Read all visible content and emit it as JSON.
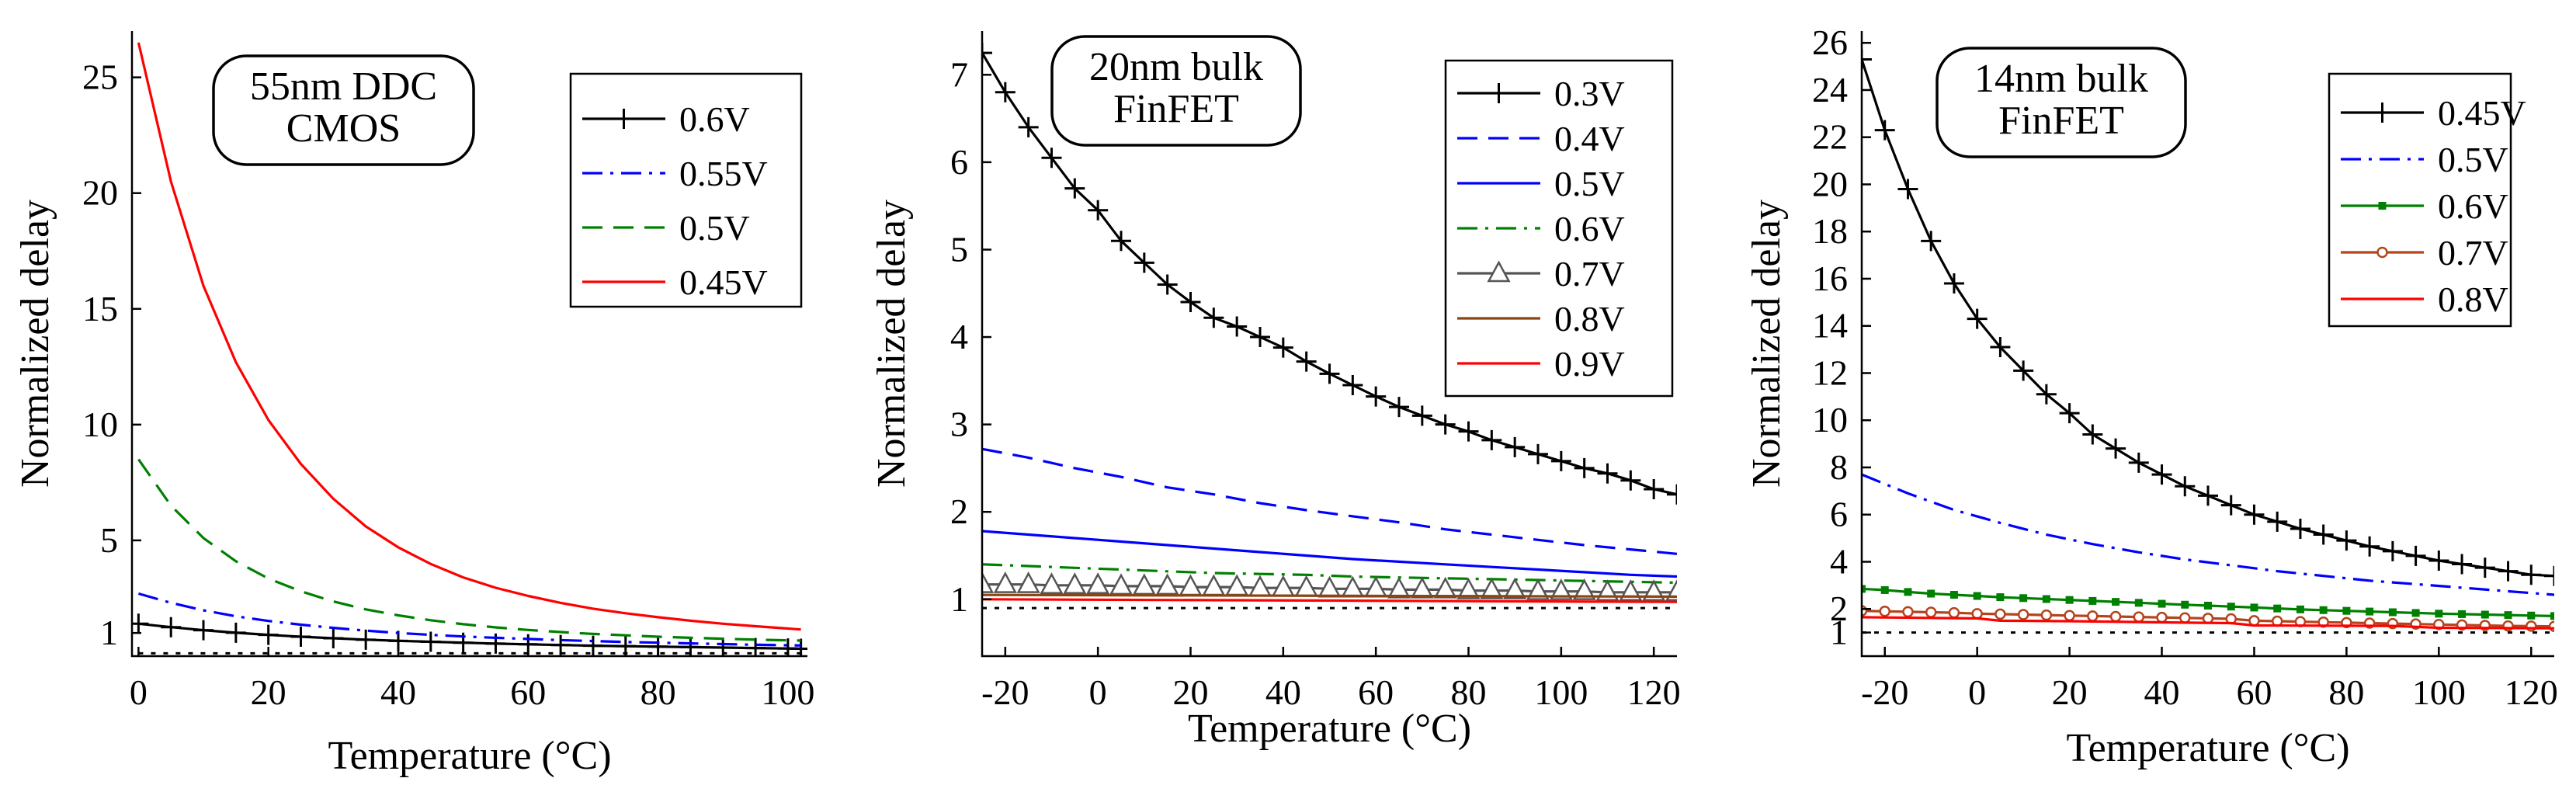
{
  "chart_data": [
    {
      "type": "line",
      "annotation": [
        "55nm DDC",
        "CMOS"
      ],
      "xlabel": "Temperature (°C)",
      "ylabel": "Normalized delay",
      "xlim": [
        -1,
        103
      ],
      "ylim": [
        0,
        27
      ],
      "xticks": [
        0,
        20,
        40,
        60,
        80,
        100
      ],
      "xtick_labels": [
        "0",
        "20",
        "40",
        "60",
        "80",
        "100"
      ],
      "yticks": [
        1,
        5,
        10,
        15,
        20,
        25
      ],
      "ytick_labels": [
        "1",
        "5",
        "10",
        "15",
        "20",
        "25"
      ],
      "legend_position": "top-right",
      "series": [
        {
          "name": "0.6V",
          "color": "#000000",
          "dash": "solid",
          "marker": "plus",
          "x": [
            0,
            5,
            10,
            15,
            20,
            25,
            30,
            35,
            40,
            45,
            50,
            55,
            60,
            65,
            70,
            75,
            80,
            85,
            90,
            95,
            100,
            102
          ],
          "values": [
            1.4,
            1.25,
            1.12,
            1.01,
            0.92,
            0.84,
            0.77,
            0.71,
            0.66,
            0.62,
            0.58,
            0.54,
            0.51,
            0.48,
            0.45,
            0.43,
            0.41,
            0.39,
            0.37,
            0.35,
            0.33,
            0.32
          ]
        },
        {
          "name": "0.55V",
          "color": "#0000ff",
          "dash": "dashdot",
          "marker": "none",
          "x": [
            0,
            5,
            10,
            15,
            20,
            25,
            30,
            35,
            40,
            45,
            50,
            55,
            60,
            65,
            70,
            75,
            80,
            85,
            90,
            95,
            100,
            102
          ],
          "values": [
            2.7,
            2.3,
            1.98,
            1.72,
            1.52,
            1.36,
            1.22,
            1.1,
            1.0,
            0.92,
            0.85,
            0.79,
            0.74,
            0.69,
            0.65,
            0.61,
            0.58,
            0.55,
            0.52,
            0.49,
            0.47,
            0.46
          ]
        },
        {
          "name": "0.5V",
          "color": "#008000",
          "dash": "dash",
          "marker": "none",
          "x": [
            0,
            5,
            10,
            15,
            20,
            25,
            30,
            35,
            40,
            45,
            50,
            55,
            60,
            65,
            70,
            75,
            80,
            85,
            90,
            95,
            100,
            102
          ],
          "values": [
            8.5,
            6.5,
            5.1,
            4.1,
            3.35,
            2.8,
            2.36,
            2.02,
            1.76,
            1.55,
            1.38,
            1.24,
            1.13,
            1.04,
            0.96,
            0.9,
            0.84,
            0.79,
            0.75,
            0.71,
            0.68,
            0.67
          ]
        },
        {
          "name": "0.45V",
          "color": "#ff0000",
          "dash": "solid",
          "marker": "none",
          "x": [
            0,
            5,
            10,
            15,
            20,
            25,
            30,
            35,
            40,
            45,
            50,
            55,
            60,
            65,
            70,
            75,
            80,
            85,
            90,
            95,
            100,
            102
          ],
          "values": [
            26.5,
            20.5,
            16.0,
            12.7,
            10.2,
            8.3,
            6.8,
            5.6,
            4.7,
            3.98,
            3.4,
            2.95,
            2.6,
            2.3,
            2.05,
            1.85,
            1.68,
            1.53,
            1.4,
            1.29,
            1.19,
            1.15
          ]
        },
        {
          "name": "",
          "color": "#000000",
          "dash": "dot",
          "marker": "none",
          "x": [
            0,
            102
          ],
          "values": [
            0.12,
            0.12
          ]
        }
      ]
    },
    {
      "type": "line",
      "annotation": [
        "20nm bulk",
        "FinFET"
      ],
      "xlabel": "Temperature (°C)",
      "ylabel": "Normalized delay",
      "xlim": [
        -25,
        125
      ],
      "ylim": [
        0.35,
        7.5
      ],
      "xticks": [
        -20,
        0,
        20,
        40,
        60,
        80,
        100,
        120
      ],
      "xtick_labels": [
        "-20",
        "0",
        "20",
        "40",
        "60",
        "80",
        "100",
        "120"
      ],
      "yticks": [
        1,
        2,
        3,
        4,
        5,
        6,
        7
      ],
      "ytick_labels": [
        "1",
        "2",
        "3",
        "4",
        "5",
        "6",
        "7"
      ],
      "legend_position": "top-right",
      "series": [
        {
          "name": "0.3V",
          "color": "#000000",
          "dash": "solid",
          "marker": "plus",
          "x": [
            -25,
            -20,
            -15,
            -10,
            -5,
            0,
            5,
            10,
            15,
            20,
            25,
            30,
            35,
            40,
            45,
            50,
            55,
            60,
            65,
            70,
            75,
            80,
            85,
            90,
            95,
            100,
            105,
            110,
            115,
            120,
            125
          ],
          "values": [
            7.25,
            6.8,
            6.4,
            6.05,
            5.7,
            5.45,
            5.1,
            4.85,
            4.6,
            4.4,
            4.22,
            4.12,
            4.0,
            3.88,
            3.72,
            3.58,
            3.45,
            3.32,
            3.2,
            3.1,
            3.0,
            2.92,
            2.82,
            2.74,
            2.66,
            2.58,
            2.5,
            2.44,
            2.36,
            2.26,
            2.2
          ]
        },
        {
          "name": "0.4V",
          "color": "#0000ff",
          "dash": "dash",
          "marker": "none",
          "x": [
            -25,
            -15,
            -5,
            5,
            15,
            25,
            35,
            45,
            55,
            65,
            75,
            85,
            95,
            105,
            115,
            125
          ],
          "values": [
            2.72,
            2.62,
            2.5,
            2.4,
            2.28,
            2.2,
            2.1,
            2.02,
            1.95,
            1.88,
            1.8,
            1.74,
            1.68,
            1.62,
            1.57,
            1.52
          ]
        },
        {
          "name": "0.5V",
          "color": "#0000ff",
          "dash": "solid",
          "marker": "none",
          "x": [
            -25,
            -15,
            -5,
            5,
            15,
            25,
            35,
            45,
            55,
            65,
            75,
            85,
            95,
            105,
            115,
            125
          ],
          "values": [
            1.78,
            1.74,
            1.7,
            1.66,
            1.62,
            1.58,
            1.54,
            1.5,
            1.46,
            1.43,
            1.4,
            1.37,
            1.34,
            1.31,
            1.28,
            1.26
          ]
        },
        {
          "name": "0.6V",
          "color": "#008000",
          "dash": "dashdot",
          "marker": "none",
          "x": [
            -25,
            -15,
            -5,
            5,
            15,
            25,
            35,
            45,
            55,
            65,
            75,
            85,
            95,
            105,
            115,
            125
          ],
          "values": [
            1.4,
            1.38,
            1.36,
            1.34,
            1.32,
            1.3,
            1.29,
            1.28,
            1.26,
            1.25,
            1.24,
            1.23,
            1.22,
            1.21,
            1.2,
            1.19
          ]
        },
        {
          "name": "0.7V",
          "color": "#555555",
          "dash": "solid",
          "marker": "triangle",
          "x": [
            -25,
            -20,
            -15,
            -10,
            -5,
            0,
            5,
            10,
            15,
            20,
            25,
            30,
            35,
            40,
            45,
            50,
            55,
            60,
            65,
            70,
            75,
            80,
            85,
            90,
            95,
            100,
            105,
            110,
            115,
            120,
            125
          ],
          "values": [
            1.17,
            1.17,
            1.17,
            1.16,
            1.16,
            1.16,
            1.15,
            1.15,
            1.15,
            1.14,
            1.14,
            1.14,
            1.13,
            1.13,
            1.13,
            1.12,
            1.12,
            1.12,
            1.11,
            1.11,
            1.11,
            1.1,
            1.1,
            1.1,
            1.09,
            1.09,
            1.09,
            1.08,
            1.08,
            1.08,
            1.08
          ]
        },
        {
          "name": "0.8V",
          "color": "#8b4513",
          "dash": "solid",
          "marker": "none",
          "x": [
            -25,
            125
          ],
          "values": [
            1.05,
            1.03
          ]
        },
        {
          "name": "0.9V",
          "color": "#ff0000",
          "dash": "solid",
          "marker": "none",
          "x": [
            -25,
            125
          ],
          "values": [
            1.0,
            0.97
          ]
        },
        {
          "name": "",
          "color": "#000000",
          "dash": "dot",
          "marker": "none",
          "x": [
            -25,
            125
          ],
          "values": [
            0.9,
            0.9
          ]
        }
      ]
    },
    {
      "type": "line",
      "annotation": [
        "14nm bulk",
        "FinFET"
      ],
      "xlabel": "Temperature (°C)",
      "ylabel": "Normalized delay",
      "xlim": [
        -25,
        125
      ],
      "ylim": [
        0,
        26.5
      ],
      "xticks": [
        -20,
        0,
        20,
        40,
        60,
        80,
        100,
        120
      ],
      "xtick_labels": [
        "-20",
        "0",
        "20",
        "40",
        "60",
        "80",
        "100",
        "120"
      ],
      "yticks": [
        1,
        2,
        4,
        6,
        8,
        10,
        12,
        14,
        16,
        18,
        20,
        22,
        24,
        26
      ],
      "ytick_labels": [
        "1",
        "2",
        "4",
        "6",
        "8",
        "10",
        "12",
        "14",
        "16",
        "18",
        "20",
        "22",
        "24",
        "26"
      ],
      "legend_position": "top-right",
      "series": [
        {
          "name": "0.45V",
          "color": "#000000",
          "dash": "solid",
          "marker": "plus",
          "x": [
            -25,
            -20,
            -15,
            -10,
            -5,
            0,
            5,
            10,
            15,
            20,
            25,
            30,
            35,
            40,
            45,
            50,
            55,
            60,
            65,
            70,
            75,
            80,
            85,
            90,
            95,
            100,
            105,
            110,
            115,
            120,
            125
          ],
          "values": [
            25.3,
            22.3,
            19.8,
            17.6,
            15.8,
            14.3,
            13.1,
            12.1,
            11.1,
            10.3,
            9.4,
            8.8,
            8.2,
            7.7,
            7.2,
            6.8,
            6.4,
            6.0,
            5.7,
            5.4,
            5.15,
            4.9,
            4.65,
            4.45,
            4.25,
            4.05,
            3.9,
            3.75,
            3.6,
            3.45,
            3.4
          ]
        },
        {
          "name": "0.5V",
          "color": "#0000ff",
          "dash": "dashdot",
          "marker": "none",
          "x": [
            -25,
            -15,
            -5,
            5,
            15,
            25,
            35,
            45,
            55,
            65,
            75,
            85,
            95,
            105,
            115,
            125
          ],
          "values": [
            7.7,
            6.9,
            6.2,
            5.65,
            5.15,
            4.75,
            4.4,
            4.1,
            3.85,
            3.6,
            3.4,
            3.2,
            3.05,
            2.9,
            2.75,
            2.6
          ]
        },
        {
          "name": "0.6V",
          "color": "#008000",
          "dash": "solid",
          "marker": "square",
          "x": [
            -25,
            -20,
            -15,
            -10,
            -5,
            0,
            5,
            10,
            15,
            20,
            25,
            30,
            35,
            40,
            45,
            50,
            55,
            60,
            65,
            70,
            75,
            80,
            85,
            90,
            95,
            100,
            105,
            110,
            115,
            120,
            125
          ],
          "values": [
            2.85,
            2.8,
            2.72,
            2.65,
            2.6,
            2.55,
            2.5,
            2.46,
            2.42,
            2.38,
            2.34,
            2.3,
            2.26,
            2.22,
            2.18,
            2.14,
            2.1,
            2.06,
            2.02,
            1.98,
            1.95,
            1.92,
            1.89,
            1.86,
            1.83,
            1.8,
            1.78,
            1.76,
            1.74,
            1.72,
            1.7
          ]
        },
        {
          "name": "0.7V",
          "color": "#b5441d",
          "dash": "solid",
          "marker": "circle",
          "x": [
            -25,
            -20,
            -15,
            -10,
            -5,
            0,
            5,
            10,
            15,
            20,
            25,
            30,
            35,
            40,
            45,
            50,
            55,
            60,
            65,
            70,
            75,
            80,
            85,
            90,
            95,
            100,
            105,
            110,
            115,
            120,
            125
          ],
          "values": [
            1.92,
            1.9,
            1.88,
            1.86,
            1.84,
            1.8,
            1.78,
            1.76,
            1.74,
            1.72,
            1.7,
            1.68,
            1.66,
            1.64,
            1.62,
            1.6,
            1.58,
            1.5,
            1.48,
            1.46,
            1.44,
            1.42,
            1.4,
            1.38,
            1.36,
            1.34,
            1.32,
            1.3,
            1.28,
            1.27,
            1.26
          ]
        },
        {
          "name": "0.8V",
          "color": "#ff0000",
          "dash": "solid",
          "marker": "none",
          "x": [
            -25,
            0,
            5,
            20,
            45,
            55,
            60,
            90,
            100,
            125
          ],
          "values": [
            1.65,
            1.6,
            1.5,
            1.48,
            1.42,
            1.4,
            1.3,
            1.28,
            1.2,
            1.18
          ]
        },
        {
          "name": "",
          "color": "#000000",
          "dash": "dot",
          "marker": "none",
          "x": [
            -25,
            125
          ],
          "values": [
            1.0,
            1.0
          ]
        }
      ]
    }
  ]
}
